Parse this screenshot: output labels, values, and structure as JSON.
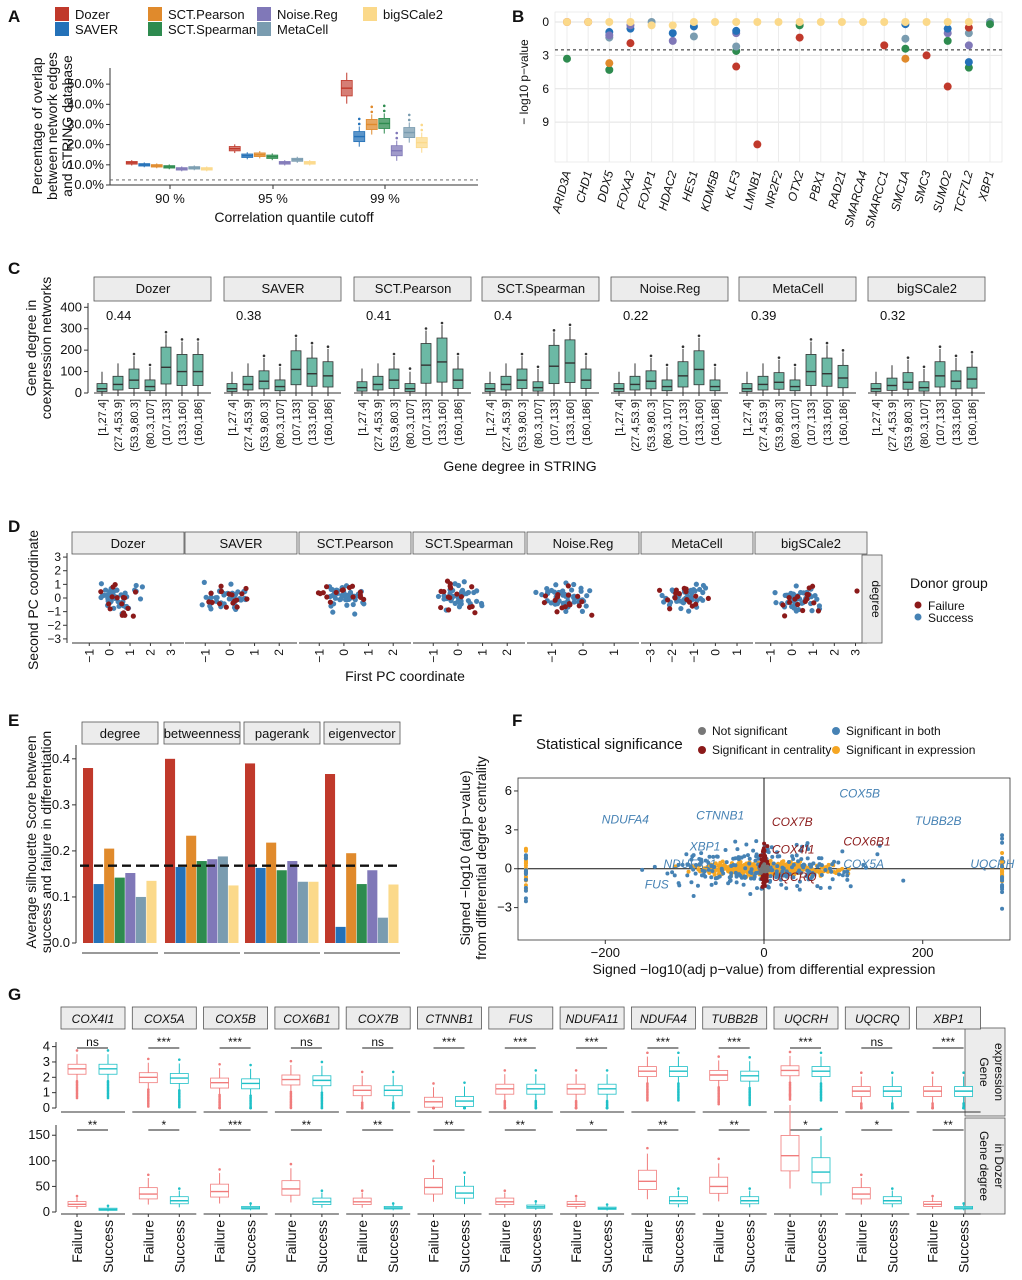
{
  "panel_letters": [
    "A",
    "B",
    "C",
    "D",
    "E",
    "F",
    "G"
  ],
  "colors": {
    "Dozer": "#C0392B",
    "SAVER": "#2471B8",
    "SCT.Pearson": "#E08A2C",
    "SCT.Spearman": "#2E8B4F",
    "Noise.Reg": "#8078B8",
    "MetaCell": "#7A9CB0",
    "bigSCale2": "#FBD98A",
    "teal": "#6CB9A5",
    "failure": "#8B1A1A",
    "success": "#4682B4",
    "grey": "#777777",
    "gold": "#F5A623",
    "pink": "#F07C7C",
    "cyan": "#1FC0C7"
  },
  "methods": [
    "Dozer",
    "SAVER",
    "SCT.Pearson",
    "SCT.Spearman",
    "Noise.Reg",
    "MetaCell",
    "bigSCale2"
  ],
  "chart_data": [
    {
      "panel": "A",
      "type": "box",
      "ylabel": [
        "Percentage of overlap",
        "between network edges",
        "and STRING database"
      ],
      "xlabel": "Correlation quantile cutoff",
      "categories": [
        "90 %",
        "95 %",
        "99 %"
      ],
      "yticks": [
        "0.0%",
        "10.0%",
        "20.0%",
        "30.0%",
        "40.0%",
        "50.0%"
      ],
      "ylim": [
        0,
        58
      ],
      "reference_line": 2.5,
      "series": [
        {
          "name": "Dozer",
          "medians": [
            11,
            18,
            48
          ]
        },
        {
          "name": "SAVER",
          "medians": [
            10,
            14.5,
            24
          ]
        },
        {
          "name": "SCT.Pearson",
          "medians": [
            9.5,
            15,
            30
          ]
        },
        {
          "name": "SCT.Spearman",
          "medians": [
            9,
            14,
            30.5
          ]
        },
        {
          "name": "Noise.Reg",
          "medians": [
            8,
            11,
            17
          ]
        },
        {
          "name": "MetaCell",
          "medians": [
            8.5,
            12.5,
            26
          ]
        },
        {
          "name": "bigSCale2",
          "medians": [
            8,
            11,
            21
          ]
        }
      ]
    },
    {
      "panel": "B",
      "type": "scatter",
      "ylabel": "− log10 p−value",
      "genes": [
        "ARID3A",
        "CHD1",
        "DDX5",
        "FOXA2",
        "FOXP1",
        "HDAC2",
        "HES1",
        "KDM5B",
        "KLF3",
        "LMNB1",
        "NR2F2",
        "OTX2",
        "PBX1",
        "RAD21",
        "SMARCA4",
        "SMARCC1",
        "SMC1A",
        "SMC3",
        "SUMO2",
        "TCF7L2",
        "XBP1"
      ],
      "yticks": [
        "0",
        "3",
        "6",
        "9"
      ],
      "ylim": [
        -0.5,
        11.5
      ],
      "threshold": 2.5,
      "points": [
        [
          0,
          "Dozer",
          0
        ],
        [
          0,
          "SCT.Spearman",
          3.3
        ],
        [
          0,
          "bigSCale2",
          0
        ],
        [
          1,
          "Dozer",
          0
        ],
        [
          1,
          "bigSCale2",
          0
        ],
        [
          2,
          "SCT.Spearman",
          4.3
        ],
        [
          2,
          "SCT.Pearson",
          3.7
        ],
        [
          2,
          "SAVER",
          0.9
        ],
        [
          2,
          "MetaCell",
          1.4
        ],
        [
          2,
          "Noise.Reg",
          1.2
        ],
        [
          2,
          "bigSCale2",
          0
        ],
        [
          3,
          "Dozer",
          1.9
        ],
        [
          3,
          "SAVER",
          0.6
        ],
        [
          3,
          "Noise.Reg",
          0.3
        ],
        [
          3,
          "bigSCale2",
          0
        ],
        [
          4,
          "MetaCell",
          0
        ],
        [
          4,
          "bigSCale2",
          0.3
        ],
        [
          5,
          "Noise.Reg",
          1.7
        ],
        [
          5,
          "SAVER",
          1.0
        ],
        [
          5,
          "bigSCale2",
          0.3
        ],
        [
          6,
          "SAVER",
          0.4
        ],
        [
          6,
          "MetaCell",
          1.3
        ],
        [
          6,
          "bigSCale2",
          0
        ],
        [
          7,
          "bigSCale2",
          0
        ],
        [
          8,
          "Dozer",
          4.0
        ],
        [
          8,
          "SCT.Spearman",
          2.6
        ],
        [
          8,
          "MetaCell",
          2.2
        ],
        [
          8,
          "Noise.Reg",
          1.0
        ],
        [
          8,
          "SAVER",
          0.8
        ],
        [
          8,
          "bigSCale2",
          0
        ],
        [
          9,
          "Dozer",
          11.0
        ],
        [
          9,
          "bigSCale2",
          0
        ],
        [
          10,
          "bigSCale2",
          0
        ],
        [
          11,
          "Dozer",
          1.4
        ],
        [
          11,
          "SCT.Spearman",
          0.3
        ],
        [
          11,
          "bigSCale2",
          0
        ],
        [
          12,
          "bigSCale2",
          0
        ],
        [
          13,
          "bigSCale2",
          0
        ],
        [
          14,
          "bigSCale2",
          0
        ],
        [
          15,
          "Dozer",
          2.1
        ],
        [
          15,
          "bigSCale2",
          0
        ],
        [
          16,
          "SCT.Pearson",
          3.3
        ],
        [
          16,
          "SCT.Spearman",
          2.4
        ],
        [
          16,
          "MetaCell",
          1.5
        ],
        [
          16,
          "SAVER",
          0.2
        ],
        [
          16,
          "bigSCale2",
          0
        ],
        [
          17,
          "Dozer",
          3.0
        ],
        [
          17,
          "bigSCale2",
          0
        ],
        [
          18,
          "Dozer",
          5.8
        ],
        [
          18,
          "SCT.Spearman",
          1.7
        ],
        [
          18,
          "Noise.Reg",
          1.0
        ],
        [
          18,
          "SAVER",
          0.6
        ],
        [
          18,
          "bigSCale2",
          0
        ],
        [
          19,
          "SCT.Spearman",
          4.1
        ],
        [
          19,
          "SAVER",
          3.6
        ],
        [
          19,
          "Noise.Reg",
          2.1
        ],
        [
          19,
          "MetaCell",
          1.0
        ],
        [
          19,
          "Dozer",
          0.5
        ],
        [
          19,
          "bigSCale2",
          0
        ],
        [
          20,
          "MetaCell",
          0
        ],
        [
          20,
          "SCT.Spearman",
          0.2
        ]
      ]
    },
    {
      "panel": "C",
      "type": "box",
      "ylabel": [
        "Gene degree in",
        "coexpression networks"
      ],
      "xlabel": "Gene degree in STRING",
      "facets": [
        "Dozer",
        "SAVER",
        "SCT.Pearson",
        "SCT.Spearman",
        "Noise.Reg",
        "MetaCell",
        "bigSCale2"
      ],
      "annotations": [
        "0.44",
        "0.38",
        "0.41",
        "0.4",
        "0.22",
        "0.39",
        "0.32"
      ],
      "categories": [
        "[1,27.4]",
        "(27.4,53.9]",
        "(53.9,80.3]",
        "(80.3,107]",
        "(107,133]",
        "(133,160]",
        "(160,186]"
      ],
      "yticks": [
        "0",
        "100",
        "200",
        "300",
        "400"
      ],
      "ylim": [
        0,
        420
      ],
      "medians": [
        [
          20,
          40,
          60,
          30,
          120,
          100,
          100
        ],
        [
          20,
          40,
          55,
          30,
          110,
          90,
          80
        ],
        [
          25,
          40,
          60,
          20,
          130,
          145,
          60
        ],
        [
          20,
          40,
          60,
          25,
          125,
          140,
          60
        ],
        [
          20,
          40,
          55,
          30,
          80,
          110,
          30
        ],
        [
          20,
          40,
          50,
          30,
          100,
          90,
          70
        ],
        [
          20,
          35,
          50,
          25,
          80,
          55,
          65
        ]
      ]
    },
    {
      "panel": "D",
      "type": "scatter",
      "ylabel": "Second PC coordinate",
      "xlabel": "First PC coordinate",
      "facets": [
        "Dozer",
        "SAVER",
        "SCT.Pearson",
        "SCT.Spearman",
        "Noise.Reg",
        "MetaCell",
        "bigSCale2"
      ],
      "strip": "degree",
      "yticks": [
        "3",
        "2",
        "1",
        "0",
        "−1",
        "−2",
        "−3"
      ],
      "xticks": [
        [
          "−1",
          "0",
          "1",
          "2",
          "3"
        ],
        [
          "−1",
          "0",
          "1",
          "2"
        ],
        [
          "−1",
          "0",
          "1",
          "2"
        ],
        [
          "−1",
          "0",
          "1",
          "2"
        ],
        [
          "−1",
          "0",
          "1"
        ],
        [
          "−3",
          "−2",
          "−1",
          "0",
          "1"
        ],
        [
          "−1",
          "0",
          "1",
          "2",
          "3"
        ]
      ],
      "legend_title": "Donor group",
      "legend": [
        "Failure",
        "Success"
      ]
    },
    {
      "panel": "E",
      "type": "bar",
      "ylabel": [
        "Average silhouette Score between",
        "success and failure in differentiation"
      ],
      "facets": [
        "degree",
        "betweenness",
        "pagerank",
        "eigenvector"
      ],
      "yticks": [
        "0.0",
        "0.1",
        "0.2",
        "0.3",
        "0.4"
      ],
      "ylim": [
        0,
        0.43
      ],
      "reference_line": 0.168,
      "values": [
        [
          0.38,
          0.128,
          0.205,
          0.142,
          0.152,
          0.1,
          0.135
        ],
        [
          0.4,
          0.165,
          0.233,
          0.178,
          0.182,
          0.188,
          0.125
        ],
        [
          0.39,
          0.163,
          0.218,
          0.158,
          0.178,
          0.133,
          0.133
        ],
        [
          0.367,
          0.035,
          0.195,
          0.128,
          0.158,
          0.055,
          0.127
        ]
      ]
    },
    {
      "panel": "F",
      "type": "scatter",
      "legend_title": "Statistical significance",
      "legend": [
        "Not significant",
        "Significant in centrality",
        "Significant in both",
        "Significant in expression"
      ],
      "xlabel": "Signed  −log10(adj p−value) from differential expression",
      "ylabel": [
        "Signed  −log10 (adj p−value)",
        "from differential degree centrality"
      ],
      "xticks": [
        "−200",
        "0",
        "200"
      ],
      "yticks": [
        "6",
        "3",
        "0",
        "−3"
      ],
      "xlim": [
        -310,
        310
      ],
      "ylim": [
        -5.5,
        7
      ],
      "labels": [
        {
          "text": "COX5B",
          "x": 95,
          "y": 5.8,
          "cls": "both"
        },
        {
          "text": "CTNNB1",
          "x": -25,
          "y": 4.1,
          "cls": "both"
        },
        {
          "text": "NDUFA4",
          "x": -145,
          "y": 3.8,
          "cls": "both"
        },
        {
          "text": "COX7B",
          "x": 10,
          "y": 3.6,
          "cls": "cent"
        },
        {
          "text": "XBP1",
          "x": -55,
          "y": 1.7,
          "cls": "both"
        },
        {
          "text": "COX6B1",
          "x": 100,
          "y": 2.1,
          "cls": "cent"
        },
        {
          "text": "COX4I1",
          "x": 10,
          "y": 1.5,
          "cls": "cent"
        },
        {
          "text": "NDUFA11",
          "x": -60,
          "y": 0.35,
          "cls": "both"
        },
        {
          "text": "COX5A",
          "x": 100,
          "y": 0.35,
          "cls": "both"
        },
        {
          "text": "UQCRQ",
          "x": 10,
          "y": -0.65,
          "cls": "cent"
        },
        {
          "text": "FUS",
          "x": -120,
          "y": -1.2,
          "cls": "both"
        },
        {
          "text": "TUBB2B",
          "x": 190,
          "y": 3.7,
          "cls": "both"
        },
        {
          "text": "UQCRH",
          "x": 260,
          "y": 0.35,
          "cls": "both"
        }
      ]
    },
    {
      "panel": "G",
      "type": "box",
      "genes": [
        "COX4I1",
        "COX5A",
        "COX5B",
        "COX6B1",
        "COX7B",
        "CTNNB1",
        "FUS",
        "NDUFA11",
        "NDUFA4",
        "TUBB2B",
        "UQCRH",
        "UQCRQ",
        "XBP1"
      ],
      "rows": [
        "Gene expression",
        "Gene degree in Dozer"
      ],
      "row_lines": [
        [
          "Gene",
          "expression"
        ],
        [
          "Gene degree",
          "in Dozer"
        ]
      ],
      "categories": [
        "Failure",
        "Success"
      ],
      "sig_expression": [
        "ns",
        "***",
        "***",
        "ns",
        "ns",
        "***",
        "***",
        "***",
        "***",
        "***",
        "***",
        "ns",
        "***"
      ],
      "sig_degree": [
        "**",
        "*",
        "***",
        "**",
        "**",
        "**",
        "**",
        "*",
        "**",
        "**",
        "*",
        "*",
        "**"
      ],
      "expr_yticks": [
        "0",
        "1",
        "2",
        "3",
        "4"
      ],
      "deg_yticks": [
        "0",
        "50",
        "100",
        "150"
      ],
      "expr_medians": [
        [
          2.55,
          2.55
        ],
        [
          2.0,
          1.95
        ],
        [
          1.65,
          1.6
        ],
        [
          1.85,
          1.8
        ],
        [
          1.15,
          1.15
        ],
        [
          0.4,
          0.45
        ],
        [
          1.25,
          1.25
        ],
        [
          1.25,
          1.25
        ],
        [
          2.4,
          2.4
        ],
        [
          2.15,
          2.1
        ],
        [
          2.45,
          2.4
        ],
        [
          1.1,
          1.1
        ],
        [
          1.1,
          1.1
        ]
      ],
      "deg_medians": [
        [
          15,
          5
        ],
        [
          35,
          22
        ],
        [
          40,
          8
        ],
        [
          45,
          20
        ],
        [
          20,
          8
        ],
        [
          48,
          37
        ],
        [
          20,
          10
        ],
        [
          15,
          7
        ],
        [
          60,
          22
        ],
        [
          50,
          22
        ],
        [
          110,
          78
        ],
        [
          35,
          22
        ],
        [
          15,
          8
        ]
      ]
    }
  ]
}
